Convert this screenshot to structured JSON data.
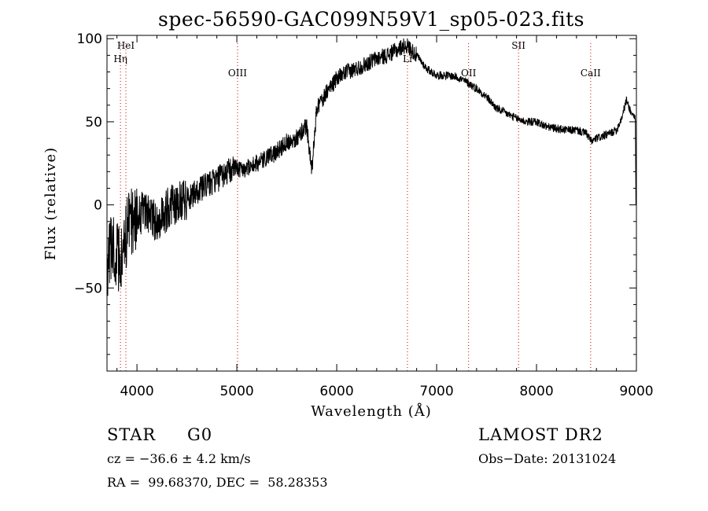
{
  "chart_data": {
    "type": "line",
    "title": "spec-56590-GAC099N59V1_sp05-023.fits",
    "xlabel": "Wavelength (Å)",
    "ylabel": "Flux (relative)",
    "xlim": [
      3700,
      9000
    ],
    "ylim": [
      -100,
      102
    ],
    "x_ticks": [
      4000,
      5000,
      6000,
      7000,
      8000,
      9000
    ],
    "x_tick_labels": [
      "4000",
      "5000",
      "6000",
      "7000",
      "8000",
      "9000"
    ],
    "y_ticks": [
      -50,
      0,
      50,
      100
    ],
    "y_tick_labels": [
      "−50",
      "0",
      "50",
      "100"
    ],
    "grid": false,
    "legend": "none",
    "line_color": "#000000",
    "marker_color": "#cc0000",
    "spectral_lines": [
      {
        "label": "HeI",
        "x": 3889,
        "label_row": "top"
      },
      {
        "label": "Hη",
        "x": 3835,
        "label_row": "second"
      },
      {
        "label": "OIII",
        "x": 5007,
        "label_row": "third"
      },
      {
        "label": "Li",
        "x": 6708,
        "label_row": "second"
      },
      {
        "label": "OII",
        "x": 7320,
        "label_row": "third"
      },
      {
        "label": "SII",
        "x": 7820,
        "label_row": "top"
      },
      {
        "label": "CaII",
        "x": 8542,
        "label_row": "third"
      }
    ],
    "series": [
      {
        "x": [
          3700,
          3750,
          3800,
          3850,
          3900,
          3950,
          4000,
          4100,
          4200,
          4300,
          4400,
          4500,
          4600,
          4700,
          4800,
          4900,
          5000,
          5100,
          5200,
          5300,
          5400,
          5500,
          5600,
          5700,
          5750,
          5800,
          5900,
          6000,
          6100,
          6200,
          6300,
          6400,
          6500,
          6600,
          6650,
          6700,
          6800,
          6900,
          7000,
          7100,
          7200,
          7300,
          7400,
          7500,
          7600,
          7700,
          7800,
          7900,
          8000,
          8100,
          8200,
          8300,
          8400,
          8500,
          8550,
          8600,
          8700,
          8800,
          8850,
          8900,
          8950,
          9000
        ],
        "y": [
          -40,
          -20,
          -30,
          -35,
          -15,
          -10,
          -5,
          -5,
          -10,
          -3,
          2,
          4,
          8,
          12,
          15,
          20,
          22,
          22,
          25,
          28,
          32,
          38,
          40,
          48,
          20,
          58,
          68,
          76,
          80,
          82,
          85,
          88,
          90,
          93,
          95,
          96,
          90,
          82,
          78,
          78,
          77,
          74,
          70,
          65,
          58,
          55,
          52,
          50,
          50,
          47,
          46,
          45,
          45,
          43,
          38,
          40,
          42,
          45,
          52,
          63,
          55,
          52
        ]
      }
    ]
  },
  "info": {
    "object_type": "STAR",
    "subclass": "G0",
    "survey": "LAMOST DR2",
    "velocity": "cz = −36.6 ± 4.2 km/s",
    "obs_date": "Obs−Date: 20131024",
    "coordinates": "RA =  99.68370, DEC =  58.28353"
  }
}
